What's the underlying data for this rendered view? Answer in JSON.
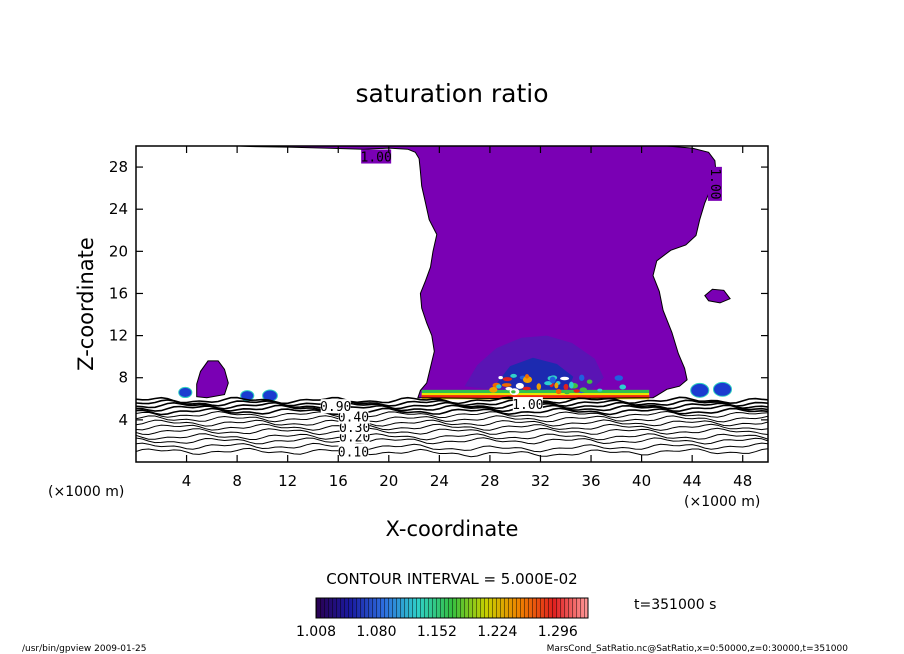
{
  "chart_data": {
    "type": "contour",
    "title": "saturation ratio",
    "xlabel": "X-coordinate",
    "ylabel": "Z-coordinate",
    "x_unit_label": "(×1000 m)",
    "y_unit_label": "(×1000 m)",
    "xlim": [
      0,
      50
    ],
    "ylim": [
      0,
      30
    ],
    "x_ticks": [
      4,
      8,
      12,
      16,
      20,
      24,
      28,
      32,
      36,
      40,
      44,
      48
    ],
    "y_ticks": [
      4,
      8,
      12,
      16,
      20,
      24,
      28
    ],
    "contour_interval_label": "CONTOUR INTERVAL = 5.000E-02",
    "contour_line_labels": [
      {
        "text": "0.10",
        "x": 17.2,
        "y": 1.0
      },
      {
        "text": "0.20",
        "x": 17.3,
        "y": 2.4
      },
      {
        "text": "0.30",
        "x": 17.3,
        "y": 3.3
      },
      {
        "text": "0.40",
        "x": 17.2,
        "y": 4.3
      },
      {
        "text": "0.90",
        "x": 15.8,
        "y": 5.3
      },
      {
        "text": "1.00",
        "x": 31.0,
        "y": 5.5
      },
      {
        "text": "1.00",
        "x": 19.0,
        "y": 29.0
      },
      {
        "text": "1.00",
        "x": 45.8,
        "y": 26.5
      }
    ],
    "colorbar": {
      "ticks": [
        "1.008",
        "1.080",
        "1.152",
        "1.224",
        "1.296"
      ],
      "min": 1.008,
      "max": 1.332,
      "colors": [
        "#2a0050",
        "#1a1aa0",
        "#2e6fe0",
        "#2fd0c8",
        "#35c040",
        "#c8d000",
        "#f08000",
        "#e02020",
        "#ff9a9a"
      ]
    },
    "time_label": "t=351000  s",
    "colors": {
      "saturated_fill": "#7a00b4",
      "deep_fill": "#5a14b4",
      "core_fill": "#1c2ab0"
    }
  },
  "footer": {
    "left": "/usr/bin/gpview   2009-01-25",
    "right": "MarsCond_SatRatio.nc@SatRatio,x=0:50000,z=0:30000,t=351000"
  }
}
